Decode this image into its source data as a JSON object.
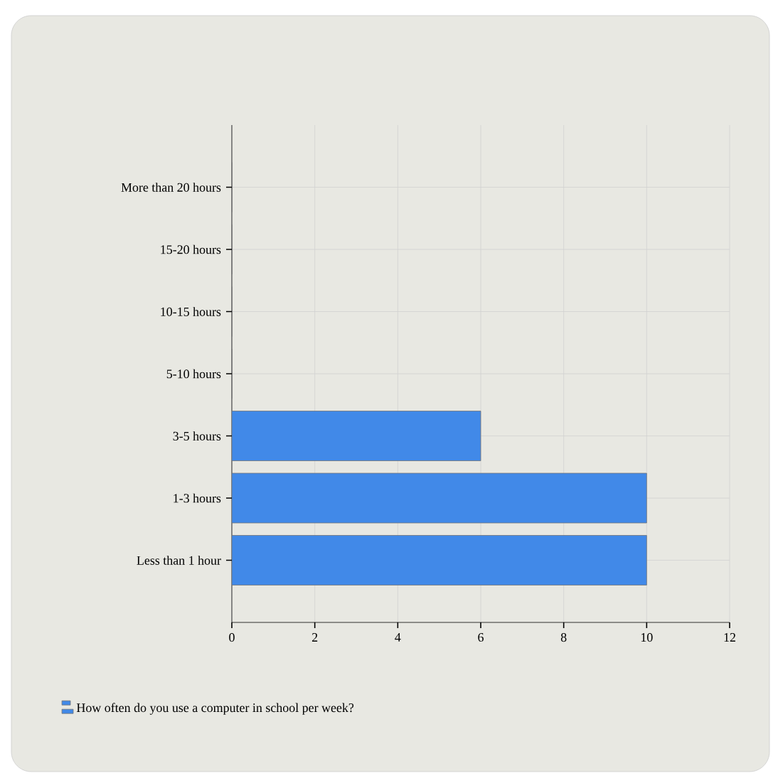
{
  "chart_data": {
    "type": "bar",
    "orientation": "horizontal",
    "categories": [
      "More than 20 hours",
      "15-20 hours",
      "10-15 hours",
      "5-10 hours",
      "3-5 hours",
      "1-3 hours",
      "Less than 1 hour"
    ],
    "series": [
      {
        "name": "How often do you use a computer in school per week?",
        "color": "#4189e8",
        "values": [
          0,
          0,
          0,
          0,
          6,
          10,
          10
        ]
      }
    ],
    "xlim": [
      0,
      12
    ],
    "xticks": [
      0,
      2,
      4,
      6,
      8,
      10,
      12
    ],
    "grid": true,
    "legend": "bottom left"
  }
}
